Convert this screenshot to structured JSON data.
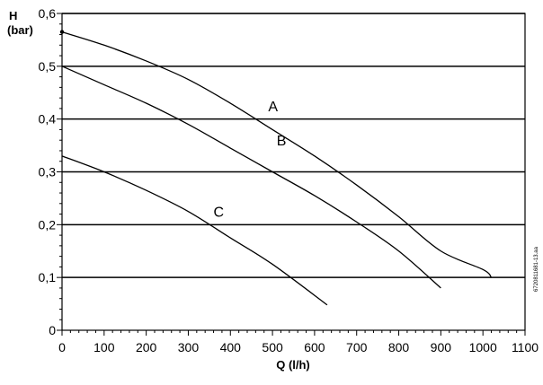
{
  "chart_data": {
    "type": "line",
    "ylabel": "H",
    "ylabel_unit": "(bar)",
    "xlabel": "Q (l/h)",
    "xlim": [
      0,
      1100
    ],
    "ylim": [
      0,
      0.6
    ],
    "x_ticks": [
      "0",
      "100",
      "200",
      "300",
      "400",
      "500",
      "600",
      "700",
      "800",
      "900",
      "1000",
      "1100"
    ],
    "y_ticks": [
      "0",
      "0,1",
      "0,2",
      "0,3",
      "0,4",
      "0,5",
      "0,6"
    ],
    "grid": "horizontal major lines",
    "series": [
      {
        "name": "A",
        "label": "A",
        "x": [
          0,
          100,
          200,
          300,
          400,
          500,
          600,
          700,
          800,
          900,
          1000,
          1020
        ],
        "y": [
          0.565,
          0.54,
          0.51,
          0.475,
          0.43,
          0.38,
          0.33,
          0.275,
          0.215,
          0.15,
          0.115,
          0.1
        ]
      },
      {
        "name": "B",
        "label": "B",
        "x": [
          0,
          100,
          200,
          300,
          400,
          500,
          600,
          700,
          800,
          900
        ],
        "y": [
          0.5,
          0.465,
          0.43,
          0.39,
          0.345,
          0.3,
          0.255,
          0.205,
          0.15,
          0.08
        ]
      },
      {
        "name": "C",
        "label": "C",
        "x": [
          0,
          100,
          200,
          300,
          400,
          500,
          630
        ],
        "y": [
          0.33,
          0.3,
          0.265,
          0.225,
          0.175,
          0.125,
          0.048
        ]
      }
    ],
    "side_code": "6720811681-13.aa"
  }
}
